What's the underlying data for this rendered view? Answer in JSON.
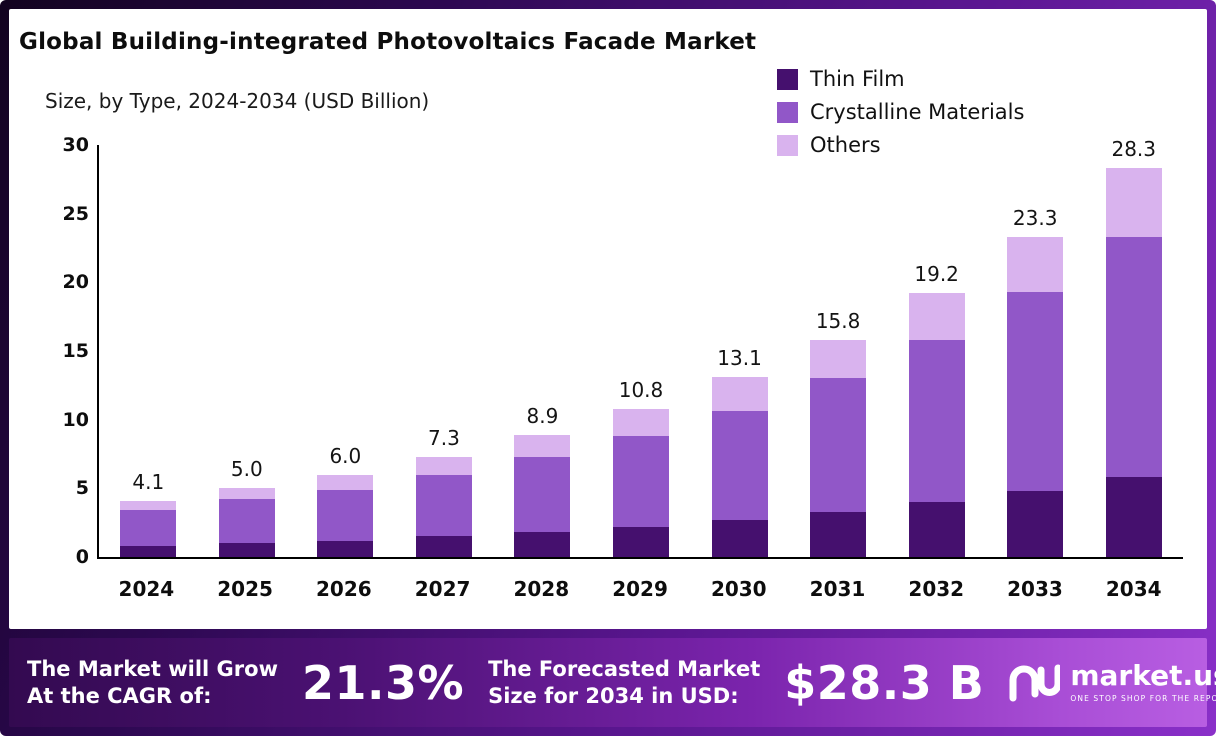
{
  "title": "Global Building-integrated Photovoltaics Facade Market",
  "subtitle": "Size, by Type, 2024-2034 (USD Billion)",
  "legend": [
    {
      "label": "Thin Film",
      "color": "#45106e"
    },
    {
      "label": "Crystalline Materials",
      "color": "#9157c8"
    },
    {
      "label": "Others",
      "color": "#d9b3ee"
    }
  ],
  "chart_data": {
    "type": "bar",
    "stacked": true,
    "grid": false,
    "legend_position": "top-right",
    "categories": [
      "2024",
      "2025",
      "2026",
      "2027",
      "2028",
      "2029",
      "2030",
      "2031",
      "2032",
      "2033",
      "2034"
    ],
    "series": [
      {
        "name": "Thin Film",
        "color": "#45106e",
        "values": [
          0.8,
          1.0,
          1.2,
          1.5,
          1.8,
          2.2,
          2.7,
          3.3,
          4.0,
          4.8,
          5.8
        ]
      },
      {
        "name": "Crystalline Materials",
        "color": "#9157c8",
        "values": [
          2.6,
          3.2,
          3.7,
          4.5,
          5.5,
          6.6,
          7.9,
          9.7,
          11.8,
          14.5,
          17.5
        ]
      },
      {
        "name": "Others",
        "color": "#d9b3ee",
        "values": [
          0.7,
          0.8,
          1.1,
          1.3,
          1.6,
          2.0,
          2.5,
          2.8,
          3.4,
          4.0,
          5.0
        ]
      }
    ],
    "totals": [
      "4.1",
      "5.0",
      "6.0",
      "7.3",
      "8.9",
      "10.8",
      "13.1",
      "15.8",
      "19.2",
      "23.3",
      "28.3"
    ],
    "xlabel": "",
    "ylabel": "",
    "ylim": [
      0,
      30
    ],
    "yticks": [
      0,
      5,
      10,
      15,
      20,
      25,
      30
    ]
  },
  "banner": {
    "cagr_label_lines": [
      "The Market will Grow",
      "At the CAGR of:"
    ],
    "cagr_value": "21.3%",
    "forecast_label_lines": [
      "The Forecasted Market",
      "Size for 2034 in USD:"
    ],
    "forecast_value": "$28.3 B",
    "brand": "market.us",
    "brand_tagline": "ONE STOP SHOP FOR THE REPORTS"
  }
}
